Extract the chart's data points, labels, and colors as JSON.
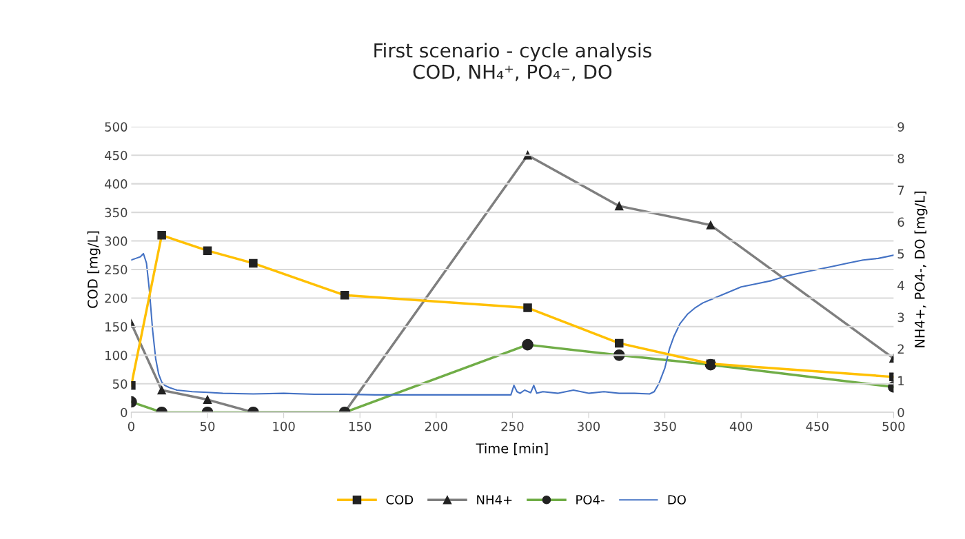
{
  "chart_data": {
    "type": "line",
    "title": "First scenario - cycle analysis\nCOD, NH₄⁺, PO₄⁻, DO",
    "xlabel": "Time [min]",
    "ylabel": "COD [mg/L]",
    "y2label": "NH4+, PO4-, DO [mg/L]",
    "xlim": [
      0,
      500
    ],
    "xticks": [
      0,
      50,
      100,
      150,
      200,
      250,
      300,
      350,
      400,
      450,
      500
    ],
    "ylim": [
      0,
      500
    ],
    "yticks": [
      0,
      50,
      100,
      150,
      200,
      250,
      300,
      350,
      400,
      450,
      500
    ],
    "y2lim": [
      0,
      9
    ],
    "y2ticks": [
      0,
      1,
      2,
      3,
      4,
      5,
      6,
      7,
      8,
      9
    ],
    "grid": "y",
    "legend": "bottom",
    "series": [
      {
        "name": "COD",
        "color": "#ffc000",
        "marker": "square",
        "x": [
          0,
          20,
          50,
          80,
          140,
          260,
          320,
          380,
          500
        ],
        "values": [
          47,
          310,
          283,
          261,
          205,
          183,
          121,
          85,
          62
        ]
      },
      {
        "name": "NH4+",
        "color": "#7f7f7f",
        "marker": "triangle",
        "axis": "y2",
        "x": [
          0,
          20,
          50,
          80,
          140,
          260,
          320,
          380,
          500
        ],
        "values": [
          2.8,
          0.7,
          0.4,
          0,
          0,
          8.1,
          6.5,
          5.9,
          1.7
        ]
      },
      {
        "name": "PO4-",
        "color": "#70ad47",
        "marker": "circle",
        "axis": "y2",
        "x": [
          0,
          20,
          50,
          80,
          140,
          260,
          320,
          380,
          500
        ],
        "values": [
          0.33,
          0,
          0,
          0,
          0,
          2.13,
          1.8,
          1.5,
          0.8
        ]
      },
      {
        "name": "DO",
        "color": "#4472c4",
        "marker": "none",
        "axis": "y2",
        "x": [
          0,
          3,
          6,
          8,
          10,
          12,
          14,
          16,
          18,
          20,
          22,
          25,
          30,
          40,
          50,
          60,
          80,
          100,
          120,
          140,
          160,
          180,
          200,
          220,
          240,
          249,
          251,
          253,
          255,
          258,
          262,
          264,
          266,
          270,
          280,
          290,
          300,
          310,
          320,
          330,
          340,
          343,
          346,
          350,
          353,
          356,
          360,
          365,
          370,
          375,
          380,
          390,
          400,
          410,
          420,
          430,
          440,
          450,
          460,
          470,
          480,
          490,
          500
        ],
        "values": [
          4.8,
          4.85,
          4.9,
          5.0,
          4.7,
          3.8,
          2.6,
          1.7,
          1.2,
          0.95,
          0.85,
          0.78,
          0.7,
          0.65,
          0.63,
          0.6,
          0.58,
          0.6,
          0.57,
          0.57,
          0.55,
          0.55,
          0.55,
          0.55,
          0.55,
          0.55,
          0.85,
          0.65,
          0.6,
          0.7,
          0.62,
          0.85,
          0.6,
          0.65,
          0.6,
          0.7,
          0.6,
          0.65,
          0.6,
          0.6,
          0.58,
          0.65,
          0.9,
          1.4,
          2.0,
          2.4,
          2.8,
          3.1,
          3.3,
          3.45,
          3.55,
          3.75,
          3.95,
          4.05,
          4.15,
          4.3,
          4.4,
          4.5,
          4.6,
          4.7,
          4.8,
          4.85,
          4.95
        ]
      }
    ]
  }
}
